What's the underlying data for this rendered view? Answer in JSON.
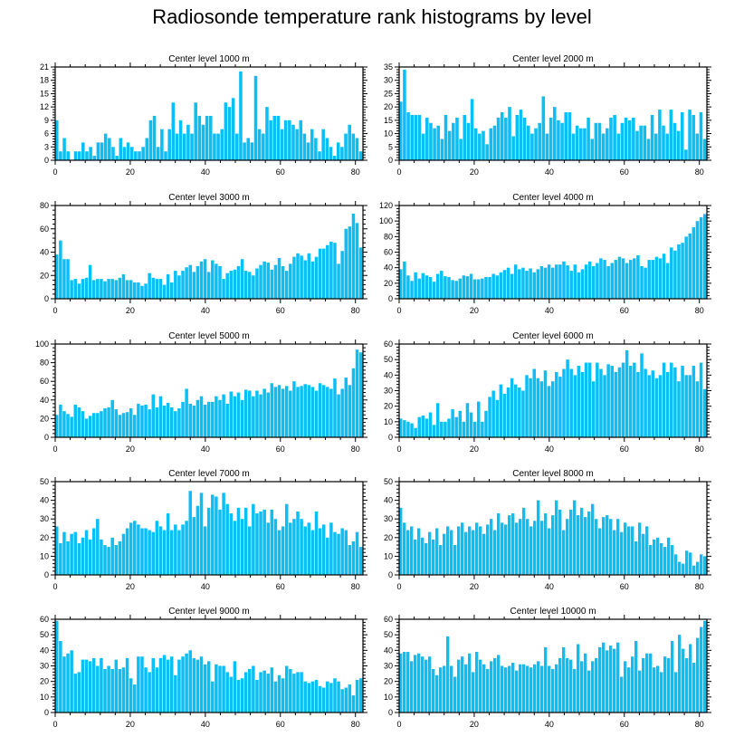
{
  "title": "Radiosonde temperature rank histograms by level",
  "colors": {
    "bar": "#0ABFF5",
    "axis": "#000000",
    "background": "#FFFFFF"
  },
  "chart_data": [
    {
      "type": "bar",
      "title": "Center level 1000 m",
      "xlim": [
        0,
        82
      ],
      "ylim": [
        0,
        21
      ],
      "xticks": [
        0,
        20,
        40,
        60,
        80
      ],
      "yticks": [
        0,
        3,
        6,
        9,
        12,
        15,
        18,
        21
      ],
      "values": [
        9,
        2,
        5,
        2,
        0,
        2,
        2,
        4,
        2,
        3,
        1,
        4,
        4,
        6,
        5,
        3,
        1,
        5,
        3,
        4,
        3,
        2,
        2,
        3,
        5,
        9,
        10,
        3,
        7,
        2,
        7,
        13,
        6,
        9,
        6,
        8,
        6,
        13,
        10,
        8,
        10,
        10,
        6,
        6,
        7,
        13,
        12,
        14,
        6,
        20,
        4,
        5,
        4,
        19,
        7,
        6,
        12,
        9,
        10,
        10,
        7,
        9,
        9,
        8,
        7,
        9,
        6,
        4,
        7,
        5,
        2,
        7,
        5,
        3,
        1,
        4,
        3,
        6,
        8,
        6,
        5,
        2
      ]
    },
    {
      "type": "bar",
      "title": "Center level 2000 m",
      "xlim": [
        0,
        82
      ],
      "ylim": [
        0,
        35
      ],
      "xticks": [
        0,
        20,
        40,
        60,
        80
      ],
      "yticks": [
        0,
        5,
        10,
        15,
        20,
        25,
        30,
        35
      ],
      "values": [
        22,
        34,
        18,
        17,
        17,
        17,
        10,
        16,
        14,
        12,
        13,
        8,
        17,
        11,
        14,
        16,
        8,
        17,
        14,
        23,
        12,
        10,
        11,
        6,
        12,
        13,
        16,
        18,
        16,
        20,
        9,
        17,
        19,
        16,
        13,
        10,
        12,
        14,
        24,
        10,
        16,
        20,
        15,
        14,
        18,
        18,
        10,
        13,
        12,
        12,
        16,
        8,
        14,
        14,
        10,
        12,
        16,
        17,
        10,
        14,
        16,
        15,
        16,
        11,
        13,
        13,
        8,
        17,
        10,
        19,
        13,
        10,
        19,
        14,
        11,
        18,
        4,
        19,
        17,
        10,
        18,
        8
      ]
    },
    {
      "type": "bar",
      "title": "Center level 3000 m",
      "xlim": [
        0,
        82
      ],
      "ylim": [
        0,
        80
      ],
      "xticks": [
        0,
        20,
        40,
        60,
        80
      ],
      "yticks": [
        0,
        20,
        40,
        60,
        80
      ],
      "values": [
        38,
        50,
        34,
        34,
        16,
        17,
        13,
        17,
        18,
        29,
        16,
        17,
        17,
        15,
        17,
        17,
        16,
        18,
        21,
        16,
        16,
        14,
        14,
        11,
        13,
        22,
        18,
        17,
        17,
        12,
        21,
        14,
        24,
        20,
        24,
        27,
        29,
        23,
        28,
        32,
        34,
        23,
        33,
        30,
        28,
        17,
        22,
        24,
        25,
        28,
        34,
        24,
        23,
        20,
        26,
        29,
        32,
        31,
        25,
        29,
        35,
        28,
        24,
        30,
        36,
        39,
        37,
        33,
        39,
        32,
        36,
        43,
        43,
        46,
        49,
        48,
        30,
        41,
        60,
        62,
        73,
        65,
        44
      ]
    },
    {
      "type": "bar",
      "title": "Center level 4000 m",
      "xlim": [
        0,
        82
      ],
      "ylim": [
        0,
        120
      ],
      "xticks": [
        0,
        20,
        40,
        60,
        80
      ],
      "yticks": [
        0,
        20,
        40,
        60,
        80,
        100,
        120
      ],
      "values": [
        38,
        48,
        30,
        23,
        34,
        26,
        33,
        30,
        28,
        22,
        32,
        36,
        29,
        28,
        24,
        23,
        26,
        30,
        29,
        32,
        25,
        25,
        26,
        28,
        28,
        32,
        30,
        34,
        37,
        40,
        32,
        44,
        38,
        40,
        36,
        39,
        34,
        38,
        42,
        40,
        44,
        40,
        44,
        44,
        48,
        43,
        36,
        44,
        34,
        38,
        44,
        48,
        42,
        46,
        52,
        50,
        42,
        46,
        50,
        54,
        52,
        46,
        50,
        52,
        56,
        42,
        40,
        50,
        50,
        54,
        52,
        58,
        46,
        66,
        62,
        70,
        72,
        80,
        84,
        92,
        100,
        105,
        109
      ]
    },
    {
      "type": "bar",
      "title": "Center level 5000 m",
      "xlim": [
        0,
        82
      ],
      "ylim": [
        0,
        100
      ],
      "xticks": [
        0,
        20,
        40,
        60,
        80
      ],
      "yticks": [
        0,
        20,
        40,
        60,
        80,
        100
      ],
      "values": [
        24,
        35,
        28,
        25,
        22,
        35,
        32,
        28,
        20,
        23,
        26,
        26,
        28,
        31,
        32,
        40,
        30,
        24,
        26,
        27,
        31,
        24,
        36,
        34,
        35,
        30,
        46,
        32,
        44,
        34,
        37,
        32,
        28,
        31,
        38,
        52,
        36,
        34,
        40,
        44,
        35,
        38,
        38,
        44,
        40,
        46,
        36,
        49,
        44,
        48,
        40,
        51,
        50,
        44,
        50,
        46,
        52,
        48,
        58,
        54,
        56,
        52,
        55,
        50,
        60,
        54,
        55,
        57,
        56,
        54,
        50,
        58,
        56,
        54,
        52,
        63,
        46,
        52,
        64,
        56,
        74,
        94,
        91
      ]
    },
    {
      "type": "bar",
      "title": "Center level 6000 m",
      "xlim": [
        0,
        82
      ],
      "ylim": [
        0,
        60
      ],
      "xticks": [
        0,
        20,
        40,
        60,
        80
      ],
      "yticks": [
        0,
        10,
        20,
        30,
        40,
        50,
        60
      ],
      "values": [
        12,
        11,
        10,
        9,
        6,
        13,
        14,
        12,
        16,
        8,
        22,
        10,
        10,
        12,
        18,
        13,
        17,
        10,
        22,
        16,
        10,
        23,
        10,
        17,
        26,
        30,
        24,
        34,
        28,
        32,
        38,
        34,
        32,
        30,
        40,
        38,
        44,
        38,
        36,
        43,
        33,
        36,
        42,
        39,
        44,
        50,
        44,
        40,
        46,
        42,
        48,
        48,
        36,
        48,
        44,
        40,
        47,
        46,
        42,
        45,
        48,
        56,
        46,
        48,
        42,
        54,
        44,
        40,
        43,
        38,
        40,
        48,
        42,
        48,
        45,
        36,
        46,
        40,
        40,
        46,
        36,
        48,
        31
      ]
    },
    {
      "type": "bar",
      "title": "Center level 7000 m",
      "xlim": [
        0,
        82
      ],
      "ylim": [
        0,
        50
      ],
      "xticks": [
        0,
        20,
        40,
        60,
        80
      ],
      "yticks": [
        0,
        10,
        20,
        30,
        40,
        50
      ],
      "values": [
        26,
        17,
        23,
        18,
        22,
        23,
        17,
        20,
        24,
        19,
        25,
        30,
        19,
        16,
        15,
        20,
        16,
        18,
        22,
        25,
        28,
        29,
        27,
        25,
        25,
        24,
        23,
        29,
        26,
        24,
        33,
        24,
        27,
        24,
        27,
        29,
        45,
        31,
        37,
        44,
        26,
        36,
        43,
        42,
        35,
        44,
        38,
        33,
        29,
        36,
        30,
        36,
        26,
        38,
        33,
        34,
        35,
        28,
        35,
        30,
        24,
        26,
        38,
        28,
        30,
        34,
        30,
        26,
        28,
        24,
        34,
        25,
        27,
        20,
        28,
        23,
        22,
        25,
        24,
        16,
        18,
        23,
        15
      ]
    },
    {
      "type": "bar",
      "title": "Center level 8000 m",
      "xlim": [
        0,
        82
      ],
      "ylim": [
        0,
        50
      ],
      "xticks": [
        0,
        20,
        40,
        60,
        80
      ],
      "yticks": [
        0,
        10,
        20,
        30,
        40,
        50
      ],
      "values": [
        36,
        28,
        24,
        26,
        19,
        25,
        20,
        17,
        23,
        19,
        25,
        16,
        22,
        26,
        24,
        16,
        26,
        28,
        23,
        26,
        24,
        28,
        26,
        22,
        27,
        30,
        24,
        33,
        28,
        27,
        32,
        33,
        28,
        30,
        36,
        30,
        26,
        29,
        40,
        29,
        33,
        25,
        32,
        40,
        35,
        24,
        30,
        35,
        40,
        32,
        36,
        31,
        34,
        38,
        30,
        25,
        31,
        32,
        30,
        24,
        30,
        23,
        28,
        26,
        26,
        18,
        28,
        22,
        26,
        16,
        19,
        20,
        17,
        15,
        20,
        16,
        11,
        7,
        6,
        13,
        12,
        5,
        7,
        11,
        10
      ]
    },
    {
      "type": "bar",
      "title": "Center level 9000 m",
      "xlim": [
        0,
        82
      ],
      "ylim": [
        0,
        60
      ],
      "xticks": [
        0,
        20,
        40,
        60,
        80
      ],
      "yticks": [
        0,
        10,
        20,
        30,
        40,
        50,
        60
      ],
      "values": [
        59,
        46,
        36,
        38,
        40,
        25,
        26,
        34,
        34,
        33,
        35,
        30,
        35,
        28,
        30,
        28,
        34,
        28,
        29,
        35,
        22,
        18,
        36,
        36,
        29,
        26,
        35,
        29,
        35,
        37,
        34,
        36,
        24,
        34,
        36,
        38,
        40,
        35,
        34,
        36,
        31,
        33,
        20,
        31,
        30,
        30,
        26,
        23,
        33,
        21,
        22,
        26,
        28,
        30,
        21,
        26,
        27,
        25,
        29,
        20,
        24,
        22,
        30,
        28,
        25,
        26,
        26,
        20,
        19,
        20,
        21,
        17,
        16,
        20,
        19,
        22,
        20,
        15,
        16,
        18,
        11,
        21,
        22
      ]
    },
    {
      "type": "bar",
      "title": "Center level 10000 m",
      "xlim": [
        0,
        82
      ],
      "ylim": [
        0,
        60
      ],
      "xticks": [
        0,
        20,
        40,
        60,
        80
      ],
      "yticks": [
        0,
        10,
        20,
        30,
        40,
        50,
        60
      ],
      "values": [
        38,
        39,
        39,
        33,
        37,
        38,
        36,
        34,
        36,
        28,
        24,
        29,
        30,
        49,
        30,
        23,
        34,
        36,
        31,
        38,
        26,
        39,
        34,
        31,
        28,
        33,
        35,
        37,
        30,
        29,
        30,
        32,
        27,
        31,
        31,
        30,
        29,
        31,
        33,
        30,
        42,
        30,
        28,
        31,
        35,
        42,
        35,
        34,
        28,
        44,
        33,
        38,
        27,
        33,
        35,
        42,
        45,
        40,
        43,
        41,
        45,
        23,
        33,
        29,
        36,
        46,
        27,
        35,
        38,
        38,
        29,
        30,
        26,
        36,
        35,
        46,
        26,
        50,
        41,
        35,
        44,
        32,
        48,
        55,
        59
      ]
    }
  ]
}
